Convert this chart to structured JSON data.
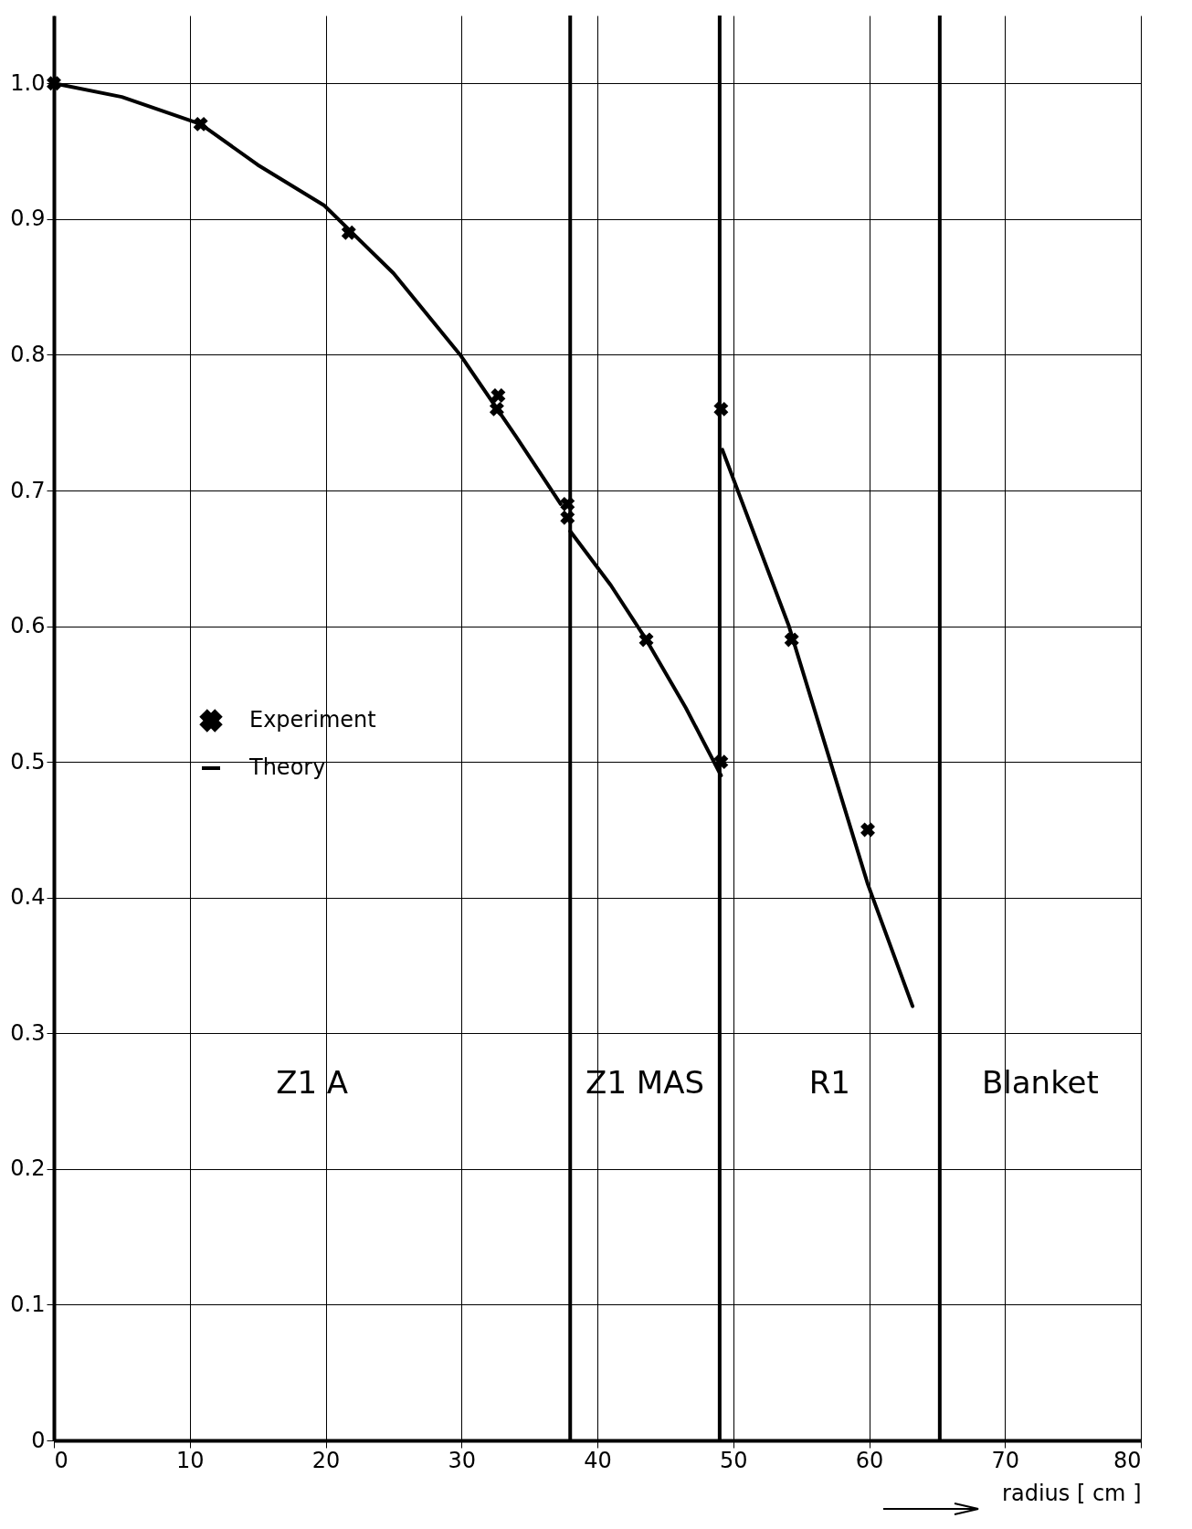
{
  "chart_data": {
    "type": "scatter",
    "xlabel": "radius [ cm ]",
    "xlim": [
      0,
      80
    ],
    "xticks": [
      0,
      10,
      20,
      30,
      40,
      50,
      60,
      70,
      80
    ],
    "ylim": [
      0,
      1.05
    ],
    "yticks": [
      0,
      {
        "value": 0.1,
        "label": "0.1"
      },
      {
        "value": 0.2,
        "label": "0.2"
      },
      {
        "value": 0.3,
        "label": "0.3"
      },
      {
        "value": 0.4,
        "label": "0.4"
      },
      {
        "value": 0.5,
        "label": "0.5"
      },
      {
        "value": 0.6,
        "label": "0.6"
      },
      {
        "value": 0.7,
        "label": "0.7"
      },
      {
        "value": 0.8,
        "label": "0.8"
      },
      {
        "value": 0.9,
        "label": "0.9"
      },
      {
        "value": 1,
        "label": "1.0"
      }
    ],
    "grid": true,
    "legend": "left",
    "series": [
      {
        "name": "Experiment",
        "marker": "cross",
        "color": "#000000",
        "x": [
          0,
          10.8,
          21.7,
          32.7,
          32.6,
          37.8,
          37.8,
          43.6,
          49.1,
          49.1,
          54.3,
          59.9
        ],
        "values": [
          1.0,
          0.97,
          0.89,
          0.77,
          0.76,
          0.69,
          0.68,
          0.59,
          0.76,
          0.5,
          0.59,
          0.45
        ]
      },
      {
        "name": "Theory",
        "type": "line",
        "color": "#000000",
        "line_style": "solid",
        "x": [
          0,
          5,
          10.8,
          15,
          19.9,
          25,
          29.9,
          34,
          37.3,
          37.6,
          38,
          41,
          43.6,
          46.5,
          49.1,
          49.15,
          49.2,
          54.1,
          59.9,
          63.2
        ],
        "values": [
          1.0,
          0.99,
          0.97,
          0.94,
          0.91,
          0.86,
          0.8,
          0.74,
          0.69,
          null,
          0.67,
          0.63,
          0.59,
          0.54,
          0.49,
          null,
          0.73,
          0.6,
          0.41,
          0.32
        ]
      }
    ],
    "ref_lines": [
      {
        "axis": "x",
        "value": 38
      },
      {
        "axis": "x",
        "value": 49
      },
      {
        "axis": "x",
        "value": 65.2
      }
    ],
    "annotations": [
      "Z1 A",
      "Z1 MAS",
      "R1",
      "Blanket"
    ]
  }
}
